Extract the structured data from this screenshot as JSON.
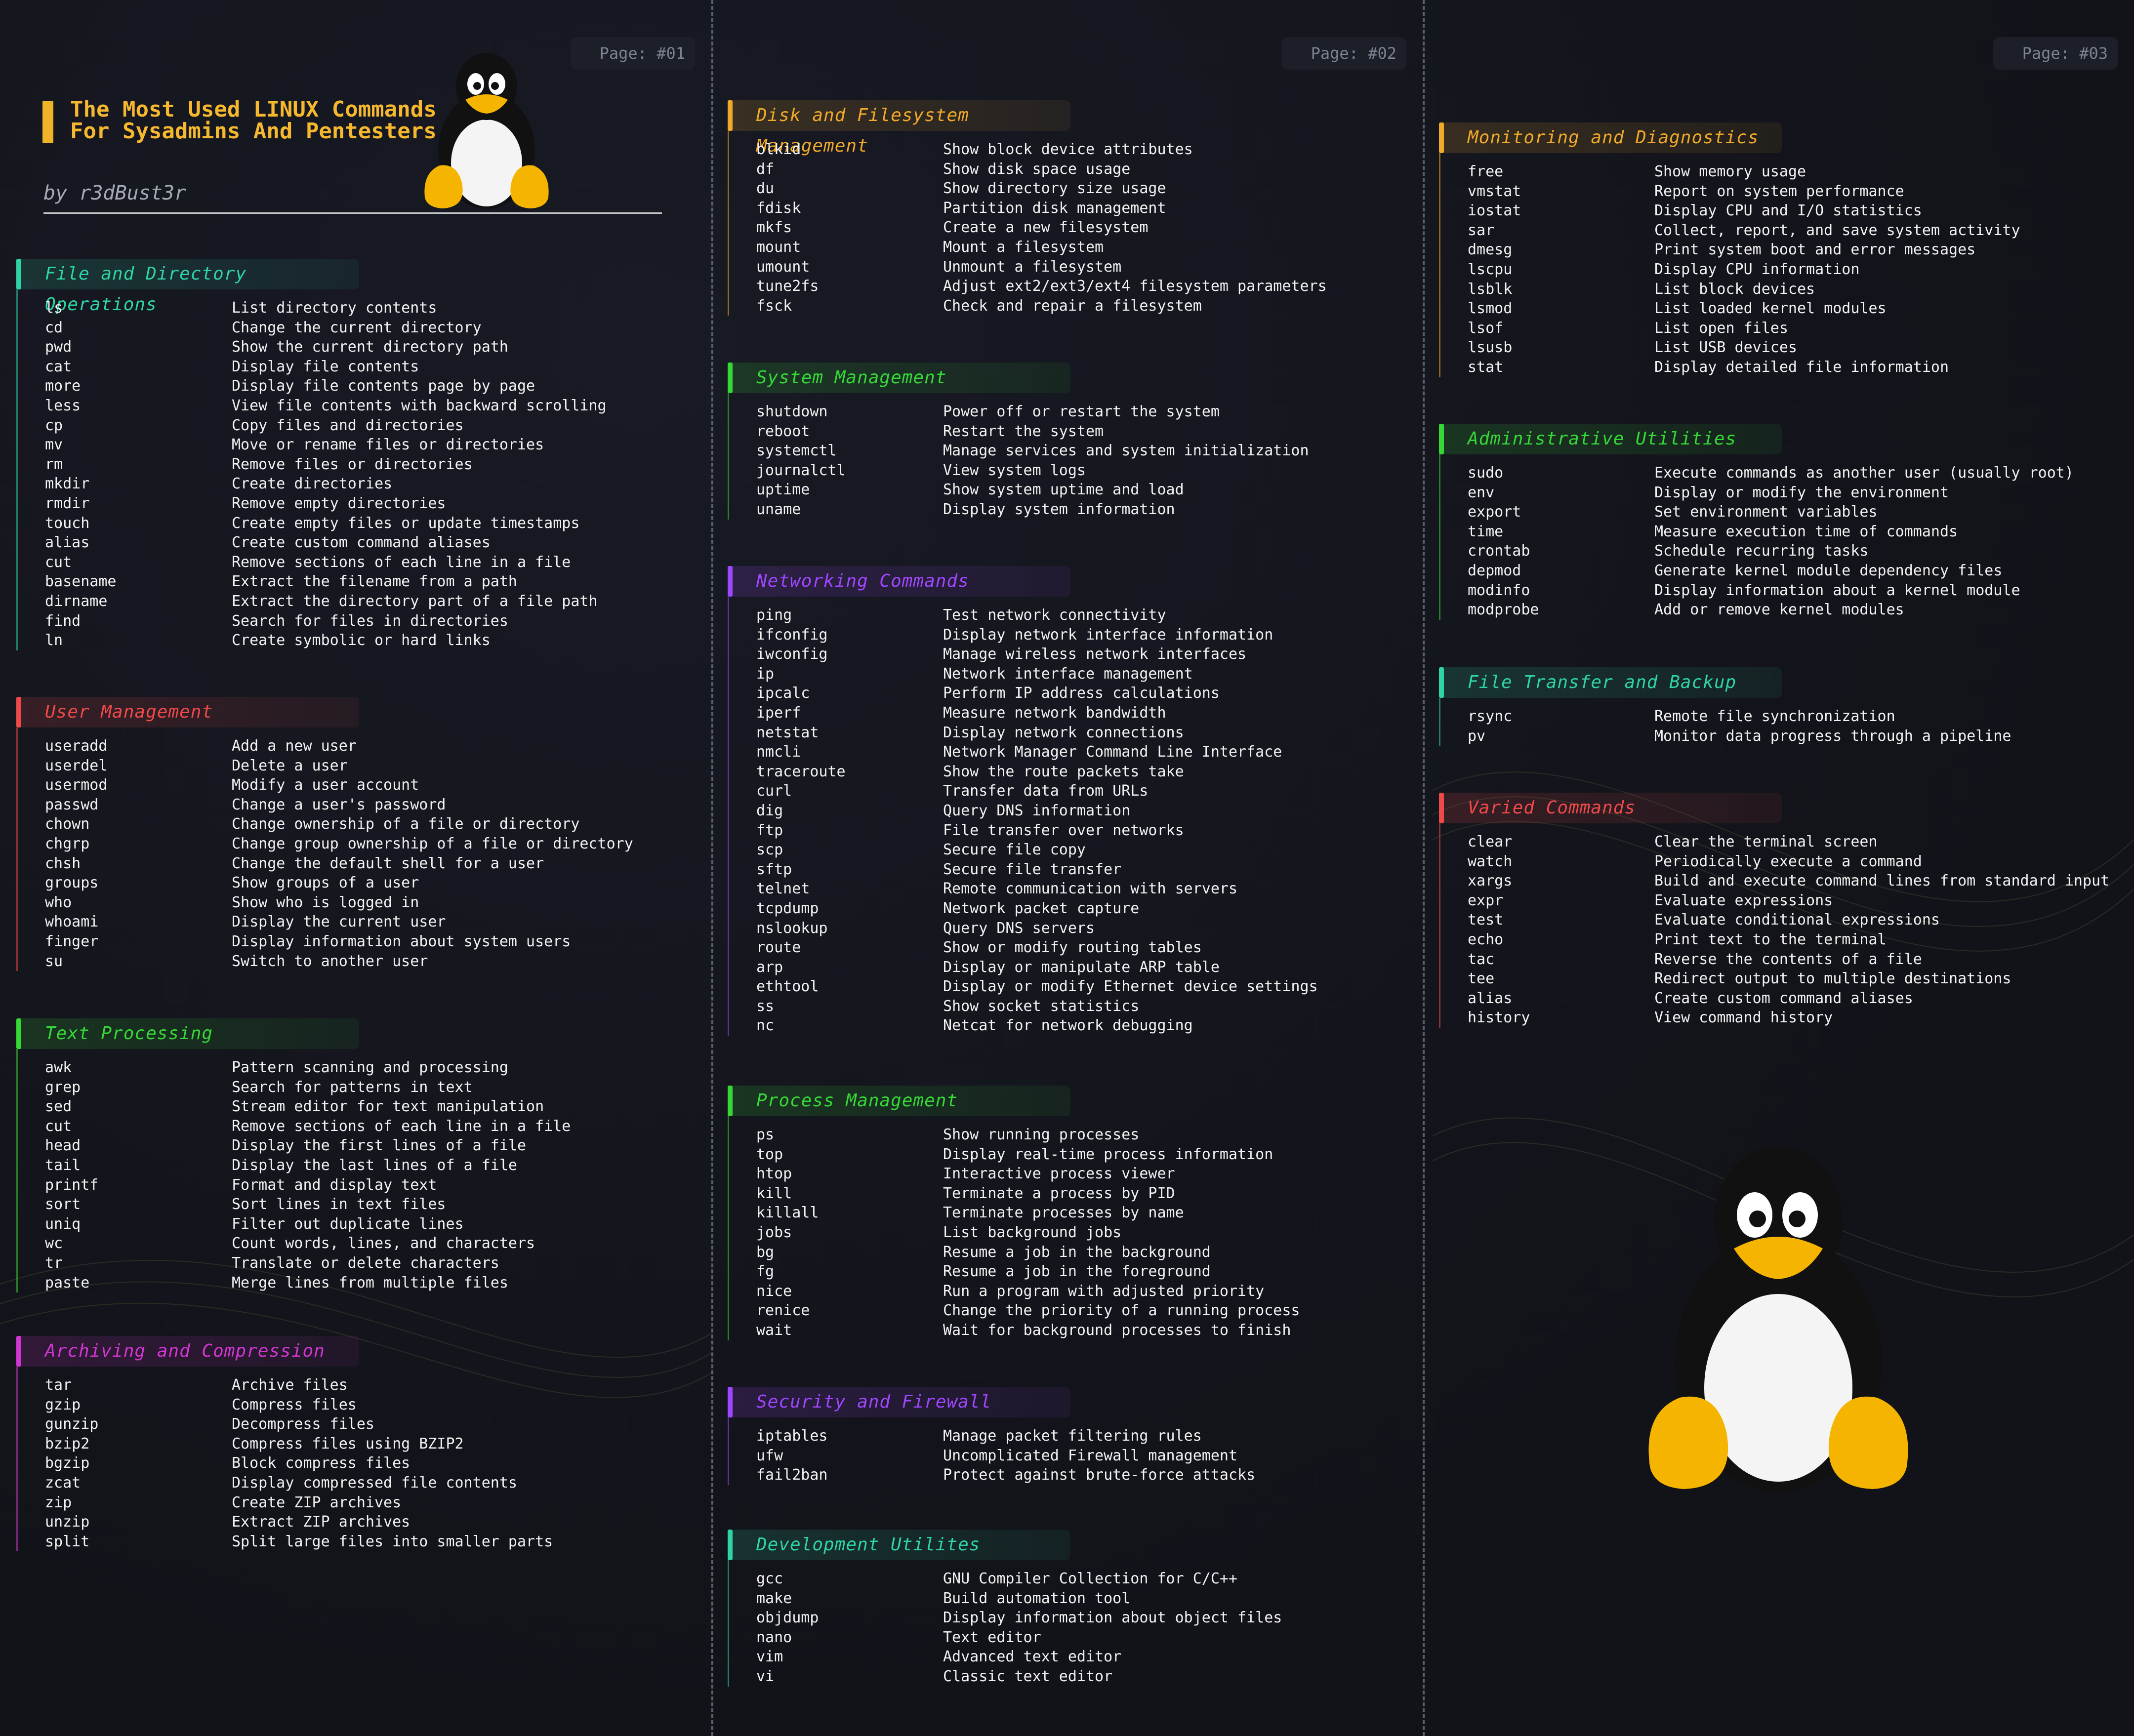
{
  "title": {
    "line1": "The Most Used LINUX Commands",
    "line2": "For Sysadmins And Pentesters",
    "byline": "by r3dBust3r"
  },
  "pages": [
    "Page: #01",
    "Page: #02",
    "Page: #03"
  ],
  "colors": {
    "background": "#13141c",
    "teal": "#2fd4a6",
    "red": "#ef4a4a",
    "green": "#36d836",
    "magenta": "#d236d2",
    "orange": "#f0a928",
    "purple": "#a146ff",
    "title": "#f5b82e"
  },
  "sections": [
    {
      "title": "File and Directory Operations",
      "rows": [
        [
          "ls",
          "List directory contents"
        ],
        [
          "cd",
          "Change the current directory"
        ],
        [
          "pwd",
          "Show the current directory path"
        ],
        [
          "cat",
          "Display file contents"
        ],
        [
          "more",
          "Display file contents page by page"
        ],
        [
          "less",
          "View file contents with backward scrolling"
        ],
        [
          "cp",
          "Copy files and directories"
        ],
        [
          "mv",
          "Move or rename files or directories"
        ],
        [
          "rm",
          "Remove files or directories"
        ],
        [
          "mkdir",
          "Create directories"
        ],
        [
          "rmdir",
          "Remove empty directories"
        ],
        [
          "touch",
          "Create empty files or update timestamps"
        ],
        [
          "alias",
          "Create custom command aliases"
        ],
        [
          "cut",
          "Remove sections of each line in a file"
        ],
        [
          "basename",
          "Extract the filename from a path"
        ],
        [
          "dirname",
          "Extract the directory part of a file path"
        ],
        [
          "find",
          "Search for files in directories"
        ],
        [
          "ln",
          "Create symbolic or hard links"
        ]
      ]
    },
    {
      "title": "User Management",
      "rows": [
        [
          "useradd",
          "Add a new user"
        ],
        [
          "userdel",
          "Delete a user"
        ],
        [
          "usermod",
          "Modify a user account"
        ],
        [
          "passwd",
          "Change a user's password"
        ],
        [
          "chown",
          "Change ownership of a file or directory"
        ],
        [
          "chgrp",
          "Change group ownership of a file or directory"
        ],
        [
          "chsh",
          "Change the default shell for a user"
        ],
        [
          "groups",
          "Show groups of a user"
        ],
        [
          "who",
          "Show who is logged in"
        ],
        [
          "whoami",
          "Display the current user"
        ],
        [
          "finger",
          "Display information about system users"
        ],
        [
          "su",
          "Switch to another user"
        ]
      ]
    },
    {
      "title": "Text Processing",
      "rows": [
        [
          "awk",
          "Pattern scanning and processing"
        ],
        [
          "grep",
          "Search for patterns in text"
        ],
        [
          "sed",
          "Stream editor for text manipulation"
        ],
        [
          "cut",
          "Remove sections of each line in a file"
        ],
        [
          "head",
          "Display the first lines of a file"
        ],
        [
          "tail",
          "Display the last lines of a file"
        ],
        [
          "printf",
          "Format and display text"
        ],
        [
          "sort",
          "Sort lines in text files"
        ],
        [
          "uniq",
          "Filter out duplicate lines"
        ],
        [
          "wc",
          "Count words, lines, and characters"
        ],
        [
          "tr",
          "Translate or delete characters"
        ],
        [
          "paste",
          "Merge lines from multiple files"
        ]
      ]
    },
    {
      "title": "Archiving and Compression",
      "rows": [
        [
          "tar",
          "Archive files"
        ],
        [
          "gzip",
          "Compress files"
        ],
        [
          "gunzip",
          "Decompress files"
        ],
        [
          "bzip2",
          "Compress files using BZIP2"
        ],
        [
          "bgzip",
          "Block compress files"
        ],
        [
          "zcat",
          "Display compressed file contents"
        ],
        [
          "zip",
          "Create ZIP archives"
        ],
        [
          "unzip",
          "Extract ZIP archives"
        ],
        [
          "split",
          "Split large files into smaller parts"
        ]
      ]
    },
    {
      "title": "Disk and Filesystem Management",
      "rows": [
        [
          "blkid",
          "Show block device attributes"
        ],
        [
          "df",
          "Show disk space usage"
        ],
        [
          "du",
          "Show directory size usage"
        ],
        [
          "fdisk",
          "Partition disk management"
        ],
        [
          "mkfs",
          "Create a new filesystem"
        ],
        [
          "mount",
          "Mount a filesystem"
        ],
        [
          "umount",
          "Unmount a filesystem"
        ],
        [
          "tune2fs",
          "Adjust ext2/ext3/ext4 filesystem parameters"
        ],
        [
          "fsck",
          "Check and repair a filesystem"
        ]
      ]
    },
    {
      "title": "System Management",
      "rows": [
        [
          "shutdown",
          "Power off or restart the system"
        ],
        [
          "reboot",
          "Restart the system"
        ],
        [
          "systemctl",
          "Manage services and system initialization"
        ],
        [
          "journalctl",
          "View system logs"
        ],
        [
          "uptime",
          "Show system uptime and load"
        ],
        [
          "uname",
          "Display system information"
        ]
      ]
    },
    {
      "title": "Networking Commands",
      "rows": [
        [
          "ping",
          "Test network connectivity"
        ],
        [
          "ifconfig",
          "Display network interface information"
        ],
        [
          "iwconfig",
          "Manage wireless network interfaces"
        ],
        [
          "ip",
          "Network interface management"
        ],
        [
          "ipcalc",
          "Perform IP address calculations"
        ],
        [
          "iperf",
          "Measure network bandwidth"
        ],
        [
          "netstat",
          "Display network connections"
        ],
        [
          "nmcli",
          "Network Manager Command Line Interface"
        ],
        [
          "traceroute",
          "Show the route packets take"
        ],
        [
          "curl",
          "Transfer data from URLs"
        ],
        [
          "dig",
          "Query DNS information"
        ],
        [
          "ftp",
          "File transfer over networks"
        ],
        [
          "scp",
          "Secure file copy"
        ],
        [
          "sftp",
          "Secure file transfer"
        ],
        [
          "telnet",
          "Remote communication with servers"
        ],
        [
          "tcpdump",
          "Network packet capture"
        ],
        [
          "nslookup",
          "Query DNS servers"
        ],
        [
          "route",
          "Show or modify routing tables"
        ],
        [
          "arp",
          "Display or manipulate ARP table"
        ],
        [
          "ethtool",
          "Display or modify Ethernet device settings"
        ],
        [
          "ss",
          "Show socket statistics"
        ],
        [
          "nc",
          "Netcat for network debugging"
        ]
      ]
    },
    {
      "title": "Process Management",
      "rows": [
        [
          "ps",
          "Show running processes"
        ],
        [
          "top",
          "Display real-time process information"
        ],
        [
          "htop",
          "Interactive process viewer"
        ],
        [
          "kill",
          "Terminate a process by PID"
        ],
        [
          "killall",
          "Terminate processes by name"
        ],
        [
          "jobs",
          "List background jobs"
        ],
        [
          "bg",
          "Resume a job in the background"
        ],
        [
          "fg",
          "Resume a job in the foreground"
        ],
        [
          "nice",
          "Run a program with adjusted priority"
        ],
        [
          "renice",
          "Change the priority of a running process"
        ],
        [
          "wait",
          "Wait for background processes to finish"
        ]
      ]
    },
    {
      "title": "Security and Firewall",
      "rows": [
        [
          "iptables",
          "Manage packet filtering rules"
        ],
        [
          "ufw",
          "Uncomplicated Firewall management"
        ],
        [
          "fail2ban",
          "Protect against brute-force attacks"
        ]
      ]
    },
    {
      "title": "Development Utilites",
      "rows": [
        [
          "gcc",
          "GNU Compiler Collection for C/C++"
        ],
        [
          "make",
          "Build automation tool"
        ],
        [
          "objdump",
          "Display information about object files"
        ],
        [
          "nano",
          "Text editor"
        ],
        [
          "vim",
          "Advanced text editor"
        ],
        [
          "vi",
          "Classic text editor"
        ]
      ]
    },
    {
      "title": "Monitoring and Diagnostics",
      "rows": [
        [
          "free",
          "Show memory usage"
        ],
        [
          "vmstat",
          "Report on system performance"
        ],
        [
          "iostat",
          "Display CPU and I/O statistics"
        ],
        [
          "sar",
          "Collect, report, and save system activity"
        ],
        [
          "dmesg",
          "Print system boot and error messages"
        ],
        [
          "lscpu",
          "Display CPU information"
        ],
        [
          "lsblk",
          "List block devices"
        ],
        [
          "lsmod",
          "List loaded kernel modules"
        ],
        [
          "lsof",
          "List open files"
        ],
        [
          "lsusb",
          "List USB devices"
        ],
        [
          "stat",
          "Display detailed file information"
        ]
      ]
    },
    {
      "title": "Administrative Utilities",
      "rows": [
        [
          "sudo",
          "Execute commands as another user (usually root)"
        ],
        [
          "env",
          "Display or modify the environment"
        ],
        [
          "export",
          "Set environment variables"
        ],
        [
          "time",
          "Measure execution time of commands"
        ],
        [
          "crontab",
          "Schedule recurring tasks"
        ],
        [
          "depmod",
          "Generate kernel module dependency files"
        ],
        [
          "modinfo",
          "Display information about a kernel module"
        ],
        [
          "modprobe",
          "Add or remove kernel modules"
        ]
      ]
    },
    {
      "title": "File Transfer and Backup",
      "rows": [
        [
          "rsync",
          "Remote file synchronization"
        ],
        [
          "pv",
          "Monitor data progress through a pipeline"
        ]
      ]
    },
    {
      "title": "Varied Commands",
      "rows": [
        [
          "clear",
          "Clear the terminal screen"
        ],
        [
          "watch",
          "Periodically execute a command"
        ],
        [
          "xargs",
          "Build and execute command lines from standard input"
        ],
        [
          "expr",
          "Evaluate expressions"
        ],
        [
          "test",
          "Evaluate conditional expressions"
        ],
        [
          "echo",
          "Print text to the terminal"
        ],
        [
          "tac",
          "Reverse the contents of a file"
        ],
        [
          "tee",
          "Redirect output to multiple destinations"
        ],
        [
          "alias",
          "Create custom command aliases"
        ],
        [
          "history",
          "View command history"
        ]
      ]
    }
  ]
}
